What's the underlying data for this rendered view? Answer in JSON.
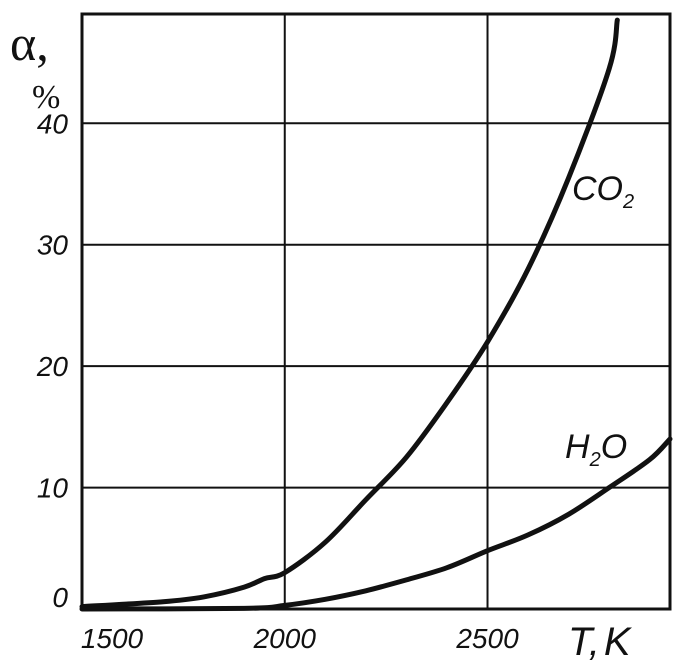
{
  "chart_data": {
    "type": "line",
    "ylabel_symbol": "α,",
    "ylabel_unit": "%",
    "xlabel_symbol": "T",
    "xlabel_sep": ",",
    "xlabel_unit": "K",
    "xlim": [
      1500,
      2950
    ],
    "ylim": [
      0,
      49
    ],
    "x_ticks": [
      1500,
      2000,
      2500
    ],
    "y_ticks": [
      0,
      10,
      20,
      30,
      40
    ],
    "x_tick_labels": [
      "1500",
      "2000",
      "2500"
    ],
    "y_tick_labels": [
      "0",
      "10",
      "20",
      "30",
      "40"
    ],
    "grid": true,
    "series": [
      {
        "name": "CO",
        "name_sub": "2",
        "x": [
          1500,
          1700,
          1800,
          1900,
          1950,
          2000,
          2100,
          2200,
          2300,
          2400,
          2500,
          2600,
          2700,
          2800,
          2820
        ],
        "y": [
          0.2,
          0.6,
          1.0,
          1.8,
          2.5,
          3.0,
          5.5,
          9.0,
          12.5,
          17.0,
          22.0,
          28.0,
          35.5,
          44.5,
          48.5
        ]
      },
      {
        "name": "H",
        "name_sub": "2",
        "name_tail": "O",
        "x": [
          1500,
          1900,
          2000,
          2100,
          2200,
          2300,
          2400,
          2500,
          2600,
          2700,
          2800,
          2900,
          2950
        ],
        "y": [
          0.0,
          0.05,
          0.3,
          0.8,
          1.5,
          2.4,
          3.4,
          4.8,
          6.1,
          7.8,
          10.0,
          12.3,
          14.0
        ]
      }
    ]
  }
}
